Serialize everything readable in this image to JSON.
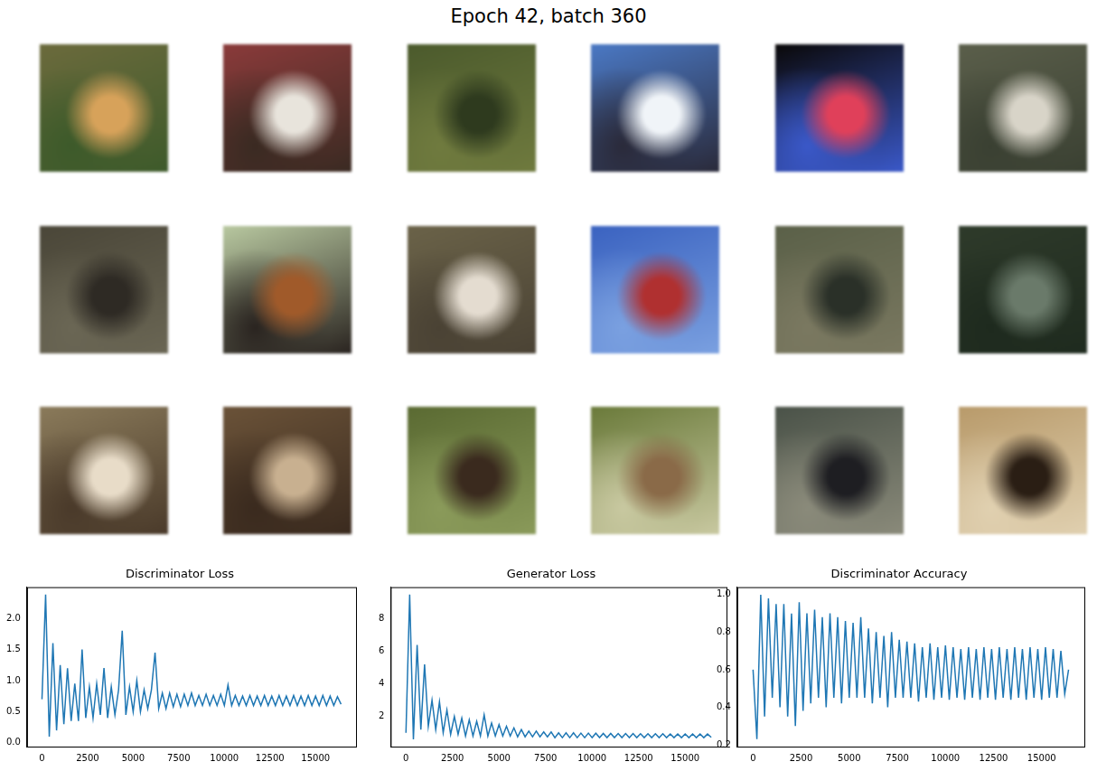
{
  "title": "Epoch 42, batch 360",
  "chart_data": [
    {
      "type": "line",
      "title": "Discriminator Loss",
      "color": "#1f77b4",
      "grid": false,
      "x": [
        0,
        200,
        400,
        600,
        800,
        1000,
        1200,
        1400,
        1600,
        1800,
        2000,
        2200,
        2400,
        2600,
        2800,
        3000,
        3200,
        3400,
        3600,
        3800,
        4000,
        4200,
        4400,
        4600,
        4800,
        5000,
        5200,
        5400,
        5600,
        5800,
        6000,
        6200,
        6400,
        6600,
        6800,
        7000,
        7200,
        7400,
        7600,
        7800,
        8000,
        8200,
        8400,
        8600,
        8800,
        9000,
        9200,
        9400,
        9600,
        9800,
        10000,
        10200,
        10400,
        10600,
        10800,
        11000,
        11200,
        11400,
        11600,
        11800,
        12000,
        12200,
        12400,
        12600,
        12800,
        13000,
        13200,
        13400,
        13600,
        13800,
        14000,
        14200,
        14400,
        14600,
        14800,
        15000,
        15200,
        15400,
        15600,
        15800,
        16000,
        16200,
        16400
      ],
      "values": [
        0.7,
        2.38,
        0.1,
        1.6,
        0.2,
        1.25,
        0.3,
        1.2,
        0.35,
        0.95,
        0.35,
        1.5,
        0.4,
        0.9,
        0.4,
        0.95,
        0.45,
        1.2,
        0.4,
        0.9,
        0.45,
        0.85,
        1.8,
        0.45,
        0.9,
        0.5,
        1.0,
        0.5,
        0.85,
        0.55,
        0.85,
        1.45,
        0.55,
        0.8,
        0.55,
        0.8,
        0.58,
        0.78,
        0.58,
        0.78,
        0.6,
        0.8,
        0.6,
        0.76,
        0.6,
        0.78,
        0.6,
        0.76,
        0.6,
        0.78,
        0.6,
        0.93,
        0.6,
        0.76,
        0.6,
        0.75,
        0.6,
        0.76,
        0.6,
        0.75,
        0.6,
        0.76,
        0.6,
        0.75,
        0.6,
        0.76,
        0.6,
        0.75,
        0.6,
        0.76,
        0.6,
        0.75,
        0.6,
        0.76,
        0.6,
        0.75,
        0.6,
        0.76,
        0.6,
        0.75,
        0.6,
        0.74,
        0.62
      ],
      "xlim": [
        -820,
        17220
      ],
      "xticks": [
        0,
        2500,
        5000,
        7500,
        10000,
        12500,
        15000
      ],
      "ylim": [
        -0.06,
        2.5
      ],
      "yticks": [
        {
          "value": 0,
          "label": "0.0"
        },
        0.5,
        {
          "value": 1,
          "label": "1.0"
        },
        1.5,
        {
          "value": 2,
          "label": "2.0"
        }
      ]
    },
    {
      "type": "line",
      "title": "Generator Loss",
      "color": "#1f77b4",
      "grid": false,
      "x": [
        0,
        200,
        400,
        600,
        800,
        1000,
        1200,
        1400,
        1600,
        1800,
        2000,
        2200,
        2400,
        2600,
        2800,
        3000,
        3200,
        3400,
        3600,
        3800,
        4000,
        4200,
        4400,
        4600,
        4800,
        5000,
        5200,
        5400,
        5600,
        5800,
        6000,
        6200,
        6400,
        6600,
        6800,
        7000,
        7200,
        7400,
        7600,
        7800,
        8000,
        8200,
        8400,
        8600,
        8800,
        9000,
        9200,
        9400,
        9600,
        9800,
        10000,
        10200,
        10400,
        10600,
        10800,
        11000,
        11200,
        11400,
        11600,
        11800,
        12000,
        12200,
        12400,
        12600,
        12800,
        13000,
        13200,
        13400,
        13600,
        13800,
        14000,
        14200,
        14400,
        14600,
        14800,
        15000,
        15200,
        15400,
        15600,
        15800,
        16000,
        16200,
        16400
      ],
      "values": [
        1.0,
        9.5,
        0.6,
        6.4,
        1.2,
        5.2,
        1.4,
        3.0,
        1.2,
        2.9,
        1.0,
        2.4,
        0.9,
        2.0,
        0.9,
        1.9,
        0.8,
        1.8,
        0.8,
        1.7,
        0.8,
        2.1,
        0.8,
        1.6,
        0.8,
        1.5,
        0.8,
        1.4,
        0.8,
        1.3,
        0.75,
        1.2,
        0.75,
        1.1,
        0.75,
        1.1,
        0.75,
        1.05,
        0.75,
        1.05,
        0.7,
        1.0,
        0.7,
        1.0,
        0.7,
        1.0,
        0.7,
        0.98,
        0.7,
        0.98,
        0.7,
        0.97,
        0.7,
        0.96,
        0.7,
        0.96,
        0.7,
        0.95,
        0.7,
        0.95,
        0.7,
        0.95,
        0.7,
        0.94,
        0.7,
        0.94,
        0.7,
        0.94,
        0.7,
        0.94,
        0.7,
        0.93,
        0.7,
        0.93,
        0.7,
        0.93,
        0.7,
        0.93,
        0.7,
        0.93,
        0.7,
        0.92,
        0.72
      ],
      "xlim": [
        -820,
        17220
      ],
      "xticks": [
        0,
        2500,
        5000,
        7500,
        10000,
        12500,
        15000
      ],
      "ylim": [
        0.15,
        9.95
      ],
      "yticks": [
        2,
        4,
        6,
        8
      ]
    },
    {
      "type": "line",
      "title": "Discriminator Accuracy",
      "color": "#1f77b4",
      "grid": false,
      "x": [
        0,
        200,
        400,
        600,
        800,
        1000,
        1200,
        1400,
        1600,
        1800,
        2000,
        2200,
        2400,
        2600,
        2800,
        3000,
        3200,
        3400,
        3600,
        3800,
        4000,
        4200,
        4400,
        4600,
        4800,
        5000,
        5200,
        5400,
        5600,
        5800,
        6000,
        6200,
        6400,
        6600,
        6800,
        7000,
        7200,
        7400,
        7600,
        7800,
        8000,
        8200,
        8400,
        8600,
        8800,
        9000,
        9200,
        9400,
        9600,
        9800,
        10000,
        10200,
        10400,
        10600,
        10800,
        11000,
        11200,
        11400,
        11600,
        11800,
        12000,
        12200,
        12400,
        12600,
        12800,
        13000,
        13200,
        13400,
        13600,
        13800,
        14000,
        14200,
        14400,
        14600,
        14800,
        15000,
        15200,
        15400,
        15600,
        15800,
        16000,
        16200,
        16400
      ],
      "values": [
        0.6,
        0.23,
        1.0,
        0.35,
        0.98,
        0.45,
        0.95,
        0.4,
        0.95,
        0.35,
        0.9,
        0.3,
        0.96,
        0.38,
        0.9,
        0.42,
        0.92,
        0.45,
        0.88,
        0.4,
        0.9,
        0.45,
        0.88,
        0.42,
        0.86,
        0.45,
        0.85,
        0.45,
        0.88,
        0.45,
        0.82,
        0.42,
        0.8,
        0.45,
        0.78,
        0.4,
        0.8,
        0.45,
        0.76,
        0.45,
        0.75,
        0.45,
        0.74,
        0.43,
        0.72,
        0.45,
        0.74,
        0.44,
        0.72,
        0.45,
        0.73,
        0.44,
        0.72,
        0.45,
        0.71,
        0.44,
        0.72,
        0.45,
        0.71,
        0.44,
        0.72,
        0.45,
        0.71,
        0.44,
        0.72,
        0.45,
        0.71,
        0.44,
        0.72,
        0.45,
        0.71,
        0.44,
        0.72,
        0.45,
        0.71,
        0.44,
        0.72,
        0.45,
        0.71,
        0.45,
        0.7,
        0.47,
        0.6
      ],
      "xlim": [
        -820,
        17220
      ],
      "xticks": [
        0,
        2500,
        5000,
        7500,
        10000,
        12500,
        15000
      ],
      "ylim": [
        0.19,
        1.04
      ],
      "yticks": [
        0.2,
        0.4,
        0.6,
        0.8,
        {
          "value": 1,
          "label": "1.0"
        }
      ]
    }
  ]
}
